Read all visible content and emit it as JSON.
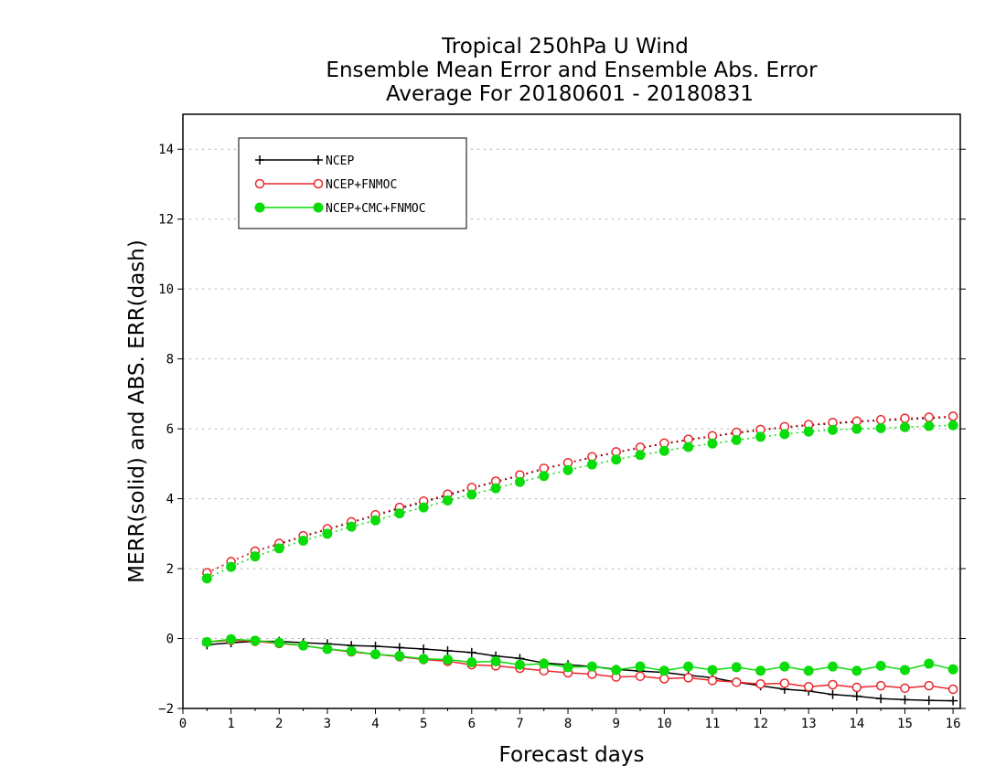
{
  "chart_data": {
    "type": "line",
    "title_lines": [
      "Tropical 250hPa U Wind",
      "Ensemble Mean Error and Ensemble Abs. Error",
      "Average For 20180601 - 20180831"
    ],
    "xlabel": "Forecast days",
    "ylabel": "MERR(solid) and ABS. ERR(dash)",
    "xlim": [
      0,
      16.15
    ],
    "ylim": [
      -2,
      15
    ],
    "xticks": [
      0,
      1,
      2,
      3,
      4,
      5,
      6,
      7,
      8,
      9,
      10,
      11,
      12,
      13,
      14,
      15,
      16
    ],
    "yticks": [
      -2,
      0,
      2,
      4,
      6,
      8,
      10,
      12,
      14
    ],
    "grid": true,
    "legend": "top-left",
    "x": [
      0.5,
      1,
      1.5,
      2,
      2.5,
      3,
      3.5,
      4,
      4.5,
      5,
      5.5,
      6,
      6.5,
      7,
      7.5,
      8,
      8.5,
      9,
      9.5,
      10,
      10.5,
      11,
      11.5,
      12,
      12.5,
      13,
      13.5,
      14,
      14.5,
      15,
      15.5,
      16
    ],
    "series": [
      {
        "name": "NCEP",
        "color": "#000000",
        "marker": "plus",
        "merr": [
          -0.18,
          -0.12,
          -0.08,
          -0.08,
          -0.12,
          -0.15,
          -0.2,
          -0.22,
          -0.26,
          -0.3,
          -0.35,
          -0.4,
          -0.5,
          -0.57,
          -0.7,
          -0.75,
          -0.8,
          -0.88,
          -0.93,
          -0.97,
          -1.05,
          -1.12,
          -1.25,
          -1.35,
          -1.45,
          -1.5,
          -1.6,
          -1.65,
          -1.72,
          -1.75,
          -1.77,
          -1.78
        ],
        "abs_err": [
          1.88,
          2.2,
          2.5,
          2.7,
          2.92,
          3.12,
          3.32,
          3.52,
          3.72,
          3.9,
          4.1,
          4.3,
          4.48,
          4.66,
          4.85,
          5.02,
          5.18,
          5.32,
          5.45,
          5.57,
          5.68,
          5.78,
          5.88,
          5.96,
          6.04,
          6.1,
          6.15,
          6.2,
          6.24,
          6.27,
          6.3,
          6.34
        ]
      },
      {
        "name": "NCEP+FNMOC",
        "color": "#e8282c",
        "marker": "open-circle",
        "merr": [
          -0.1,
          -0.05,
          -0.08,
          -0.14,
          -0.2,
          -0.3,
          -0.38,
          -0.45,
          -0.52,
          -0.6,
          -0.65,
          -0.75,
          -0.78,
          -0.85,
          -0.92,
          -0.98,
          -1.02,
          -1.1,
          -1.08,
          -1.15,
          -1.12,
          -1.2,
          -1.25,
          -1.3,
          -1.28,
          -1.38,
          -1.32,
          -1.4,
          -1.35,
          -1.42,
          -1.35,
          -1.45
        ],
        "abs_err": [
          1.88,
          2.2,
          2.5,
          2.72,
          2.94,
          3.14,
          3.34,
          3.54,
          3.75,
          3.93,
          4.13,
          4.32,
          4.5,
          4.68,
          4.87,
          5.03,
          5.2,
          5.34,
          5.47,
          5.59,
          5.7,
          5.8,
          5.9,
          5.98,
          6.06,
          6.12,
          6.18,
          6.22,
          6.26,
          6.3,
          6.33,
          6.36
        ]
      },
      {
        "name": "NCEP+CMC+FNMOC",
        "color": "#0adc0a",
        "marker": "filled-circle",
        "merr": [
          -0.1,
          -0.02,
          -0.06,
          -0.12,
          -0.2,
          -0.3,
          -0.36,
          -0.45,
          -0.5,
          -0.58,
          -0.6,
          -0.68,
          -0.65,
          -0.75,
          -0.72,
          -0.82,
          -0.8,
          -0.9,
          -0.8,
          -0.92,
          -0.8,
          -0.9,
          -0.82,
          -0.92,
          -0.8,
          -0.92,
          -0.8,
          -0.92,
          -0.78,
          -0.9,
          -0.72,
          -0.88
        ],
        "abs_err": [
          1.72,
          2.05,
          2.35,
          2.58,
          2.8,
          3.0,
          3.2,
          3.38,
          3.58,
          3.75,
          3.95,
          4.12,
          4.3,
          4.48,
          4.65,
          4.82,
          4.98,
          5.12,
          5.25,
          5.37,
          5.48,
          5.58,
          5.68,
          5.77,
          5.85,
          5.92,
          5.97,
          6.0,
          6.02,
          6.05,
          6.08,
          6.1
        ]
      }
    ]
  }
}
